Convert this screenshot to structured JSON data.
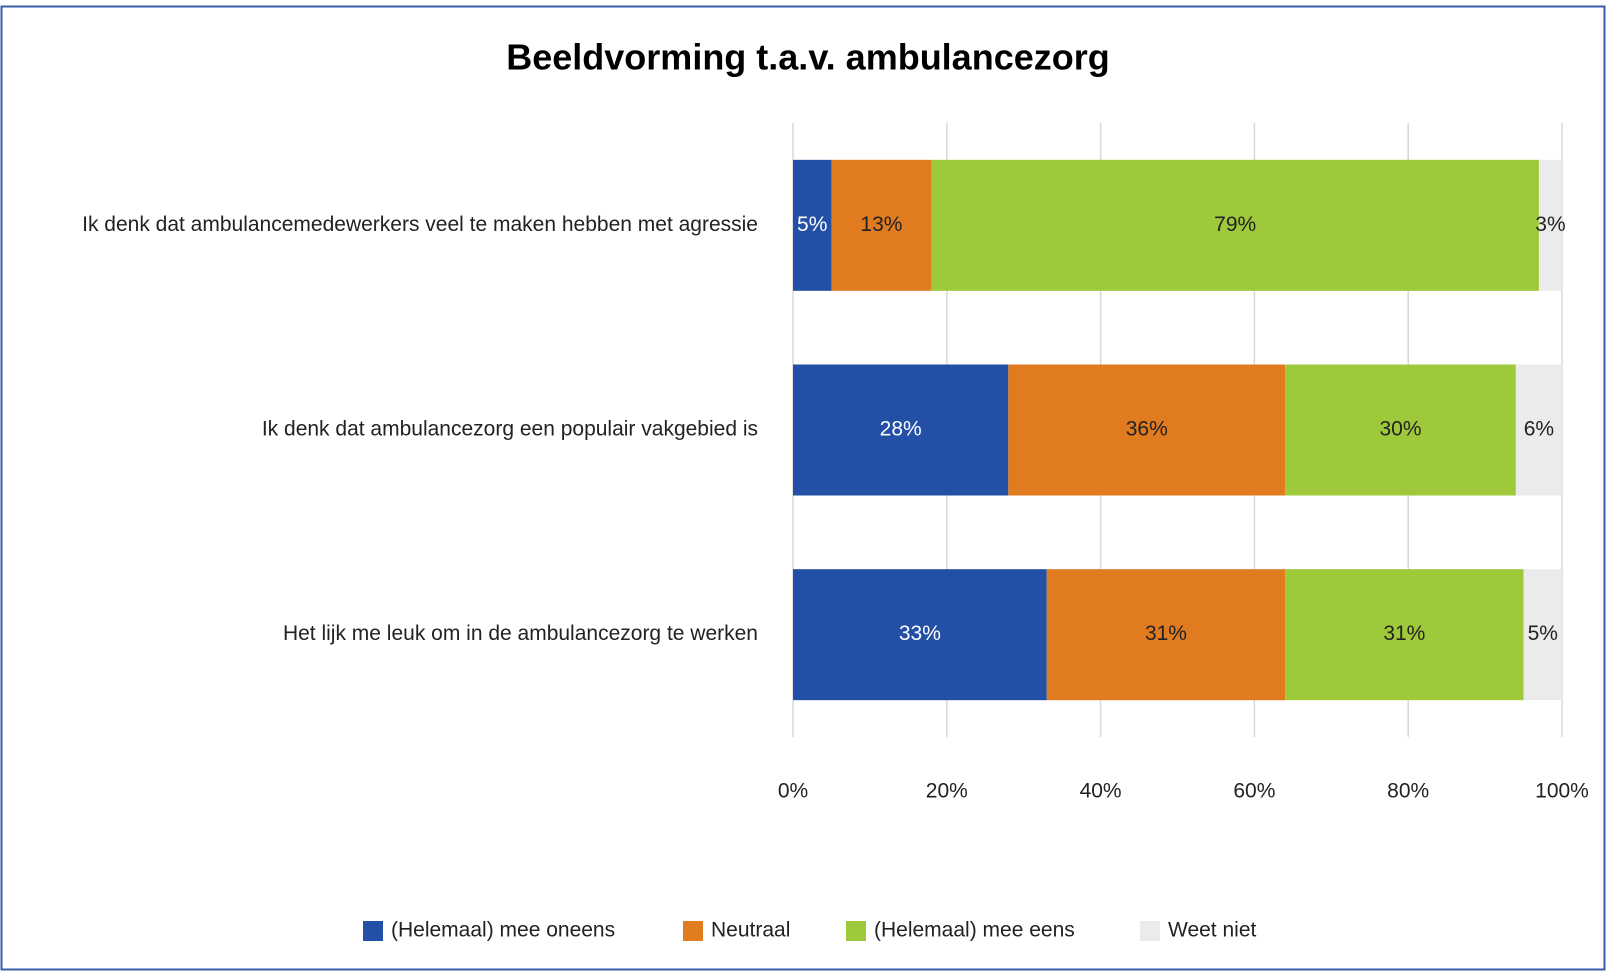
{
  "chart_data": {
    "type": "stacked_bar_horizontal",
    "title": "Beeldvorming t.a.v. ambulancezorg",
    "categories": [
      "Ik denk dat ambulancemedewerkers veel te maken hebben met agressie",
      "Ik denk dat ambulancezorg een populair vakgebied is",
      "Het lijk me leuk om in de ambulancezorg te werken"
    ],
    "series": [
      {
        "name": "(Helemaal) mee oneens",
        "color": "#2350a6",
        "values": [
          5,
          28,
          33
        ],
        "value_labels": [
          "5%",
          "28%",
          "33%"
        ]
      },
      {
        "name": "Neutraal",
        "color": "#e07b20",
        "values": [
          13,
          36,
          31
        ],
        "value_labels": [
          "13%",
          "36%",
          "31%"
        ]
      },
      {
        "name": "(Helemaal) mee eens",
        "color": "#9dc93b",
        "values": [
          79,
          30,
          31
        ],
        "value_labels": [
          "79%",
          "30%",
          "31%"
        ]
      },
      {
        "name": "Weet niet",
        "color": "#ebebeb",
        "values": [
          3,
          6,
          5
        ],
        "value_labels": [
          "3%",
          "6%",
          "5%"
        ]
      }
    ],
    "xlim": [
      0,
      100
    ],
    "xticks": [
      {
        "value": 0,
        "label": "0%"
      },
      {
        "value": 20,
        "label": "20%"
      },
      {
        "value": 40,
        "label": "40%"
      },
      {
        "value": 60,
        "label": "60%"
      },
      {
        "value": 80,
        "label": "80%"
      },
      {
        "value": 100,
        "label": "100%"
      }
    ],
    "grid": true,
    "legend": "bottom"
  }
}
